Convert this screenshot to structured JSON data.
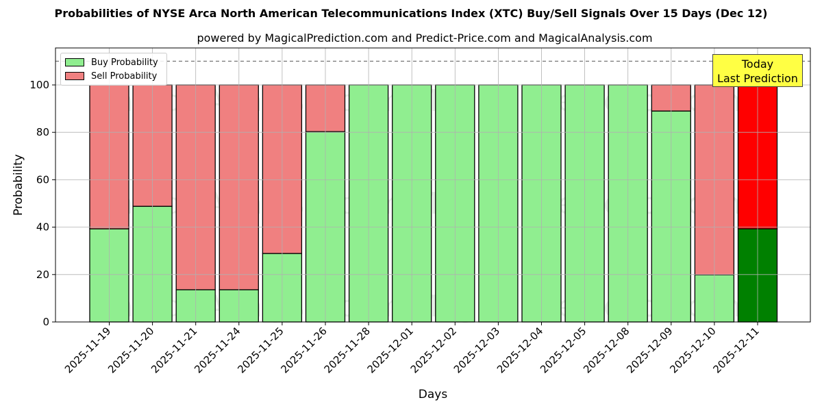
{
  "chart_data": {
    "type": "bar",
    "stacked": true,
    "title": "Probabilities of NYSE Arca North American Telecommunications Index (XTC) Buy/Sell Signals Over 15 Days (Dec 12)",
    "subtitle": "powered by MagicalPrediction.com and Predict-Price.com and MagicalAnalysis.com",
    "xlabel": "Days",
    "ylabel": "Probability",
    "ylim": [
      0,
      115
    ],
    "yticks": [
      0,
      20,
      40,
      60,
      80,
      100
    ],
    "reference_line": 110,
    "categories": [
      "2025-11-19",
      "2025-11-20",
      "2025-11-21",
      "2025-11-24",
      "2025-11-25",
      "2025-11-26",
      "2025-11-28",
      "2025-12-01",
      "2025-12-02",
      "2025-12-03",
      "2025-12-04",
      "2025-12-05",
      "2025-12-08",
      "2025-12-09",
      "2025-12-10",
      "2025-12-11"
    ],
    "series": [
      {
        "name": "Buy Probability",
        "color": "#90ee90",
        "values": [
          39.3,
          48.8,
          13.6,
          13.6,
          28.9,
          80.3,
          100,
          100,
          100,
          100,
          100,
          100,
          100,
          89.0,
          19.9,
          39.3
        ]
      },
      {
        "name": "Sell Probability",
        "color": "#f08080",
        "values": [
          60.7,
          51.2,
          86.4,
          86.4,
          71.1,
          19.7,
          0,
          0,
          0,
          0,
          0,
          0,
          0,
          11.0,
          80.1,
          60.7
        ]
      }
    ],
    "highlight": {
      "index": 15,
      "buy_color": "#008000",
      "sell_color": "#ff0000",
      "annotation": "Today\nLast Prediction"
    },
    "legend_position": "upper left",
    "grid": true
  },
  "legend": {
    "buy": "Buy Probability",
    "sell": "Sell Probability"
  },
  "annotation": {
    "line1": "Today",
    "line2": "Last Prediction"
  },
  "watermarks": [
    "MagicalAnalysis.com",
    "MagicalPrediction.com"
  ]
}
